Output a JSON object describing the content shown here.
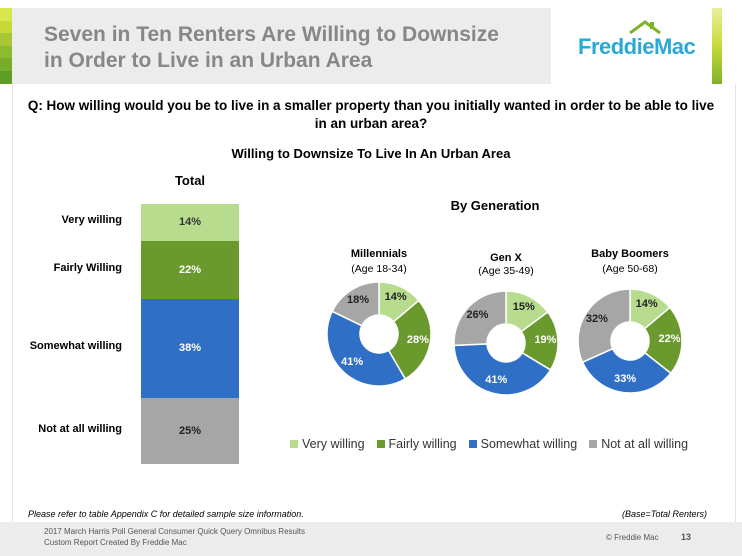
{
  "header": {
    "title_line1": "Seven in Ten Renters Are Willing to Downsize",
    "title_line2": "in Order to Live in an Urban Area",
    "logo": "FreddieMac",
    "stripe_colors": [
      "#d7e64c",
      "#c7d936",
      "#a9c637",
      "#8cbb2f",
      "#78ad2a",
      "#5f9e26"
    ]
  },
  "question": "Q: How willing would you be to live in a smaller property than you initially wanted in order to be able to live in an urban area?",
  "chart_title": "Willing to Downsize To Live In An Urban Area",
  "colors": {
    "very": "#b8dc8e",
    "fairly": "#6a9a2e",
    "somewhat": "#2f70c6",
    "not": "#a6a6a6"
  },
  "chart_data": [
    {
      "type": "bar",
      "title": "Total",
      "stacked": true,
      "categories": [
        "Very willing",
        "Fairly Willing",
        "Somewhat willing",
        "Not at all willing"
      ],
      "values": [
        14,
        22,
        38,
        25
      ],
      "labels": [
        "14%",
        "22%",
        "38%",
        "25%"
      ]
    },
    {
      "type": "pie",
      "donut": true,
      "title": "By Generation",
      "legend_position": "bottom",
      "legend": [
        "Very willing",
        "Fairly willing",
        "Somewhat willing",
        "Not at all willing"
      ],
      "series": [
        {
          "name": "Millennials",
          "subtitle": "(Age 18-34)",
          "values": [
            14,
            28,
            41,
            18
          ],
          "labels": [
            "14%",
            "28%",
            "41%",
            "18%"
          ]
        },
        {
          "name": "Gen X",
          "subtitle": "(Age 35-49)",
          "values": [
            15,
            19,
            41,
            26
          ],
          "labels": [
            "15%",
            "19%",
            "41%",
            "26%"
          ]
        },
        {
          "name": "Baby Boomers",
          "subtitle": "(Age 50-68)",
          "values": [
            14,
            22,
            33,
            32
          ],
          "labels": [
            "14%",
            "22%",
            "33%",
            "32%"
          ]
        }
      ]
    }
  ],
  "notes": {
    "left": "Please refer to table Appendix C for detailed sample size information.",
    "right": "(Base=Total Renters)"
  },
  "footer": {
    "line1": "2017 March Harris Poll General Consumer Quick Query Omnibus Results",
    "line2": "Custom Report Created By Freddie Mac",
    "copyright": "© Freddie Mac",
    "page": "13"
  }
}
